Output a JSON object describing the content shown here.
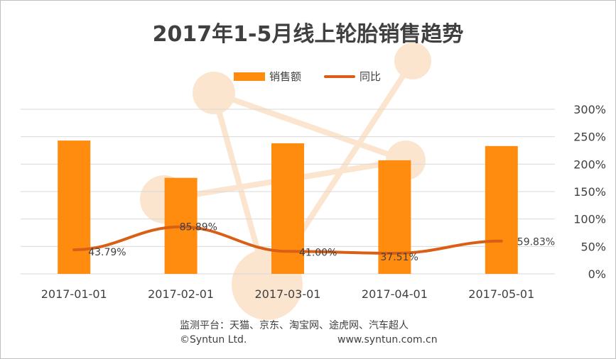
{
  "colors": {
    "bar": "#ff8c0f",
    "line": "#d95f16",
    "grid": "#d9d9d9",
    "text": "#404040",
    "watermark": "#fbe5cf"
  },
  "legend": {
    "bar_label": "销售额",
    "line_label": "同比"
  },
  "source": {
    "platforms": "监测平台：天猫、京东、淘宝网、途虎网、汽车超人",
    "copyright": "©Syntun Ltd.",
    "website": "www.syntun.com.cn"
  },
  "chart_data": {
    "type": "bar",
    "title": "2017年1-5月线上轮胎销售趋势",
    "categories": [
      "2017-01-01",
      "2017-02-01",
      "2017-03-01",
      "2017-04-01",
      "2017-05-01"
    ],
    "series": [
      {
        "name": "销售额",
        "type": "bar",
        "axis": "left",
        "values": [
          243,
          175,
          238,
          207,
          233
        ]
      },
      {
        "name": "同比",
        "type": "line",
        "axis": "right",
        "values": [
          43.79,
          85.89,
          41.0,
          37.51,
          59.83
        ],
        "labels": [
          "43.79%",
          "85.89%",
          "41.00%",
          "37.51%",
          "59.83%"
        ]
      }
    ],
    "y_right": {
      "ticks": [
        "0%",
        "50%",
        "100%",
        "150%",
        "200%",
        "250%",
        "300%"
      ],
      "range": [
        0,
        300
      ]
    },
    "y_left_range": [
      0,
      300
    ],
    "grid": true,
    "legend_position": "top"
  }
}
